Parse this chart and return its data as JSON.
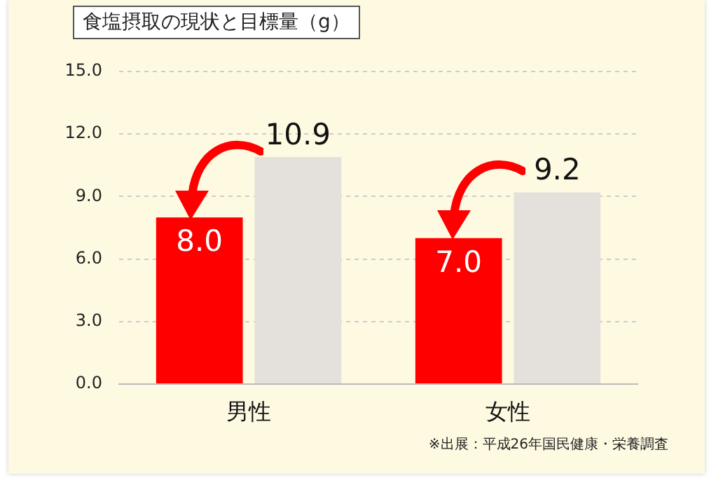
{
  "chart_data": {
    "type": "bar",
    "title": "食塩摂取の現状と目標量（g）",
    "categories": [
      "男性",
      "女性"
    ],
    "series": [
      {
        "color": "#ff0000",
        "values": [
          8.0,
          7.0
        ],
        "value_labels": [
          "8.0",
          "7.0"
        ]
      },
      {
        "color": "#e4e0dc",
        "values": [
          10.9,
          9.2
        ],
        "value_labels": [
          "10.9",
          "9.2"
        ]
      }
    ],
    "ylim": [
      0,
      15
    ],
    "yticks": [
      {
        "value": 0,
        "label": "0.0"
      },
      {
        "value": 3,
        "label": "3.0"
      },
      {
        "value": 6,
        "label": "6.0"
      },
      {
        "value": 9,
        "label": "9.0"
      },
      {
        "value": 12,
        "label": "12.0"
      },
      {
        "value": 15,
        "label": "15.0"
      }
    ],
    "grid": "y",
    "legend": false,
    "annotations": [
      "※出展：平成26年国民健康・栄養調査"
    ]
  }
}
